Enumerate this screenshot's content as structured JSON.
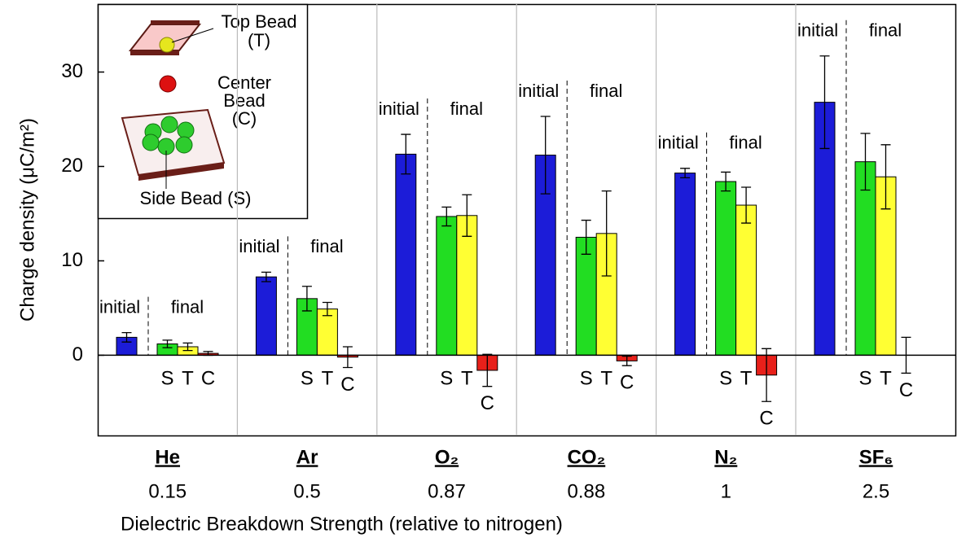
{
  "chart_data": {
    "type": "bar",
    "ylabel": "Charge density (μC/m²)",
    "xlabel": "Dielectric Breakdown Strength (relative to nitrogen)",
    "categories": [
      "He",
      "Ar",
      "O₂",
      "CO₂",
      "N₂",
      "SF₆"
    ],
    "breakdown_strength": [
      0.15,
      0.5,
      0.87,
      0.88,
      1,
      2.5
    ],
    "final_label": "final",
    "series": [
      {
        "name": "initial",
        "color": "#1c1cd8",
        "values": [
          1.9,
          8.3,
          21.3,
          21.2,
          19.3,
          26.8
        ],
        "errors": [
          0.5,
          0.5,
          2.1,
          4.1,
          0.5,
          4.9
        ]
      },
      {
        "name": "S",
        "color": "#22dd22",
        "values": [
          1.2,
          6.0,
          14.7,
          12.5,
          18.4,
          20.5
        ],
        "errors": [
          0.4,
          1.3,
          1.0,
          1.8,
          1.0,
          3.0
        ]
      },
      {
        "name": "T",
        "color": "#ffff33",
        "values": [
          0.9,
          4.9,
          14.8,
          12.9,
          15.9,
          18.9
        ],
        "errors": [
          0.4,
          0.7,
          2.2,
          4.5,
          1.9,
          3.4
        ]
      },
      {
        "name": "C",
        "color": "#e8201a",
        "values": [
          0.2,
          -0.2,
          -1.6,
          -0.6,
          -2.1,
          0
        ],
        "errors": [
          0.2,
          1.1,
          1.7,
          0.5,
          2.8,
          1.9
        ]
      }
    ],
    "ylim": [
      -8.5,
      37.2
    ],
    "yticks": [
      0,
      10,
      20,
      30
    ],
    "inset": {
      "top": [
        "Top Bead",
        "(T)"
      ],
      "center": [
        "Center",
        "Bead",
        "(C)"
      ],
      "side": [
        "Side Bead (S)"
      ]
    }
  }
}
